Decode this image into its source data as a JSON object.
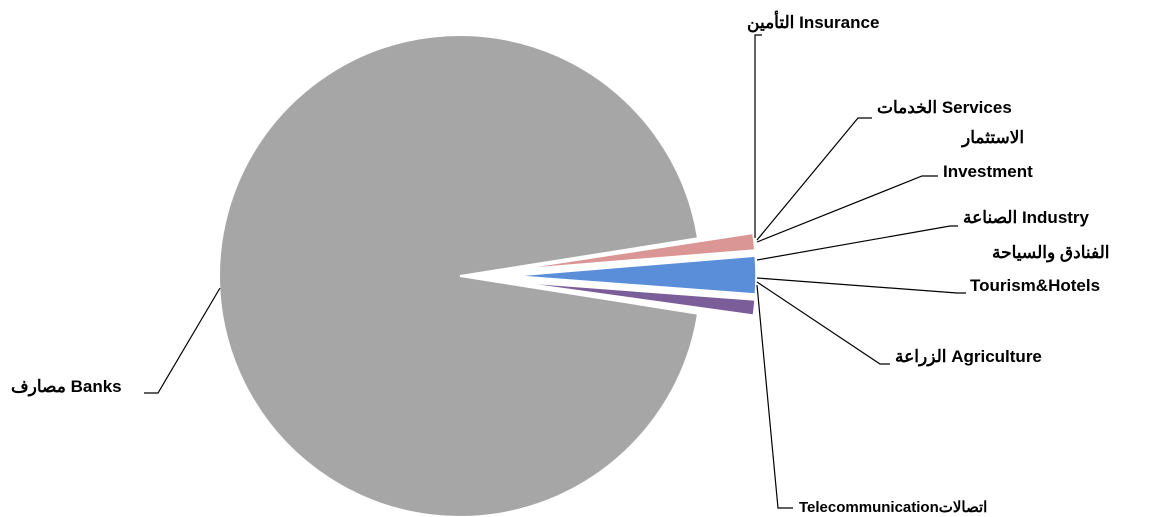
{
  "chart_data": {
    "type": "pie",
    "title": "",
    "slices": [
      {
        "label": "مصارف Banks",
        "value": 95.0,
        "color": "#a6a6a6"
      },
      {
        "label": "التأمين Insurance",
        "value": 0.1,
        "color": "#8ea9db"
      },
      {
        "label": "الخدمات Services",
        "value": 0.1,
        "color": "#b3a2c7"
      },
      {
        "label": "الاستثمار Investment",
        "value": 0.1,
        "color": "#c0c0c0"
      },
      {
        "label": "الصناعة Industry",
        "value": 1.0,
        "color": "#7b5d99"
      },
      {
        "label": "الفنادق والسياحة Tourism&Hotels",
        "value": 2.5,
        "color": "#5b8ed9"
      },
      {
        "label": "الزراعة Agriculture",
        "value": 1.1,
        "color": "#d99694"
      },
      {
        "label": "Telecommunicationاتصالات",
        "value": 0.1,
        "color": "#c9c9c9"
      }
    ],
    "legend": "none"
  },
  "labels": {
    "insurance": "التأمين  Insurance",
    "services": "الخدمات  Services",
    "investment_ar": "الاستثمار",
    "investment_en": "Investment",
    "industry": "الصناعة  Industry",
    "tourism_ar": "الفنادق والسياحة",
    "tourism_en": "Tourism&Hotels",
    "agriculture": "الزراعة  Agriculture",
    "telecom": "Telecommunicationاتصالات",
    "banks": "مصارف  Banks"
  }
}
